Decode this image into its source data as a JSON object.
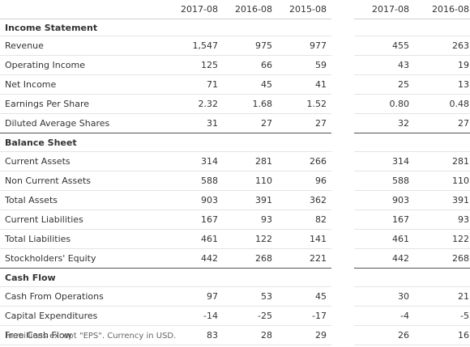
{
  "headers": [
    "2017-08",
    "2016-08",
    "2015-08",
    "2017-08",
    "2016-08"
  ],
  "sections": [
    {
      "title": "Income Statement",
      "rows": [
        {
          "label": "Revenue",
          "values": [
            "1,547",
            "975",
            "977",
            "455",
            "263"
          ]
        },
        {
          "label": "Operating Income",
          "values": [
            "125",
            "66",
            "59",
            "43",
            "19"
          ]
        },
        {
          "label": "Net Income",
          "values": [
            "71",
            "45",
            "41",
            "25",
            "13"
          ]
        },
        {
          "label": "Earnings Per Share",
          "values": [
            "2.32",
            "1.68",
            "1.52",
            "0.80",
            "0.48"
          ]
        },
        {
          "label": "Diluted Average Shares",
          "values": [
            "31",
            "27",
            "27",
            "32",
            "27"
          ]
        }
      ]
    },
    {
      "title": "Balance Sheet",
      "rows": [
        {
          "label": "Current Assets",
          "values": [
            "314",
            "281",
            "266",
            "314",
            "281"
          ]
        },
        {
          "label": "Non Current Assets",
          "values": [
            "588",
            "110",
            "96",
            "588",
            "110"
          ]
        },
        {
          "label": "Total Assets",
          "values": [
            "903",
            "391",
            "362",
            "903",
            "391"
          ]
        },
        {
          "label": "Current Liabilities",
          "values": [
            "167",
            "93",
            "82",
            "167",
            "93"
          ]
        },
        {
          "label": "Total Liabilities",
          "values": [
            "461",
            "122",
            "141",
            "461",
            "122"
          ]
        },
        {
          "label": "Stockholders' Equity",
          "values": [
            "442",
            "268",
            "221",
            "442",
            "268"
          ]
        }
      ]
    },
    {
      "title": "Cash Flow",
      "rows": [
        {
          "label": "Cash From Operations",
          "values": [
            "97",
            "53",
            "45",
            "30",
            "21"
          ]
        },
        {
          "label": "Capital Expenditures",
          "values": [
            "-14",
            "-25",
            "-17",
            "-4",
            "-5"
          ]
        },
        {
          "label": "Free Cash Flow",
          "values": [
            "83",
            "28",
            "29",
            "26",
            "16"
          ]
        }
      ]
    }
  ],
  "footnote": "In millions except \"EPS\". Currency in USD."
}
